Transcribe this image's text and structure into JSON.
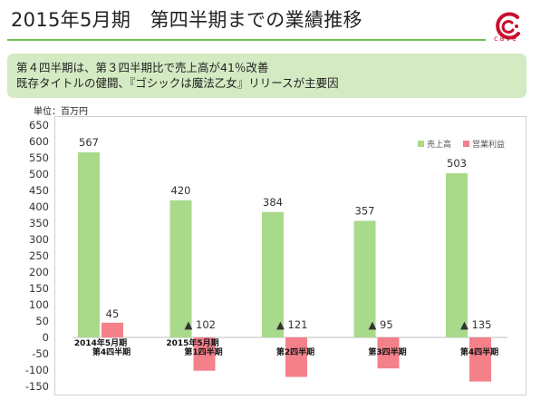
{
  "header": {
    "title": "2015年5月期　第四半期までの業績推移",
    "logo_text": "cave"
  },
  "summary": {
    "line1": "第４四半期は、第３四半期比で売上高が41％改善",
    "line2": "既存タイトルの健闘、『ゴシックは魔法乙女』リリースが主要因"
  },
  "colors": {
    "accent_green": "#6dbf4f",
    "summary_bg": "#d3eac3",
    "sales_bar": "#a9d98a",
    "profit_bar": "#f4808a",
    "logo_red": "#c8102e"
  },
  "chart_data": {
    "type": "bar",
    "unit_label": "単位：百万円",
    "categories": [
      [
        "2014年5月期",
        "第4四半期"
      ],
      [
        "2015年5月期",
        "第1四半期"
      ],
      [
        "",
        "第2四半期"
      ],
      [
        "",
        "第3四半期"
      ],
      [
        "",
        "第4四半期"
      ]
    ],
    "series": [
      {
        "name": "売上高",
        "color": "#a9d98a",
        "values": [
          567,
          420,
          384,
          357,
          503
        ]
      },
      {
        "name": "営業利益",
        "color": "#f4808a",
        "values": [
          45,
          -102,
          -121,
          -95,
          -135
        ]
      }
    ],
    "data_labels": {
      "売上高": [
        "567",
        "420",
        "384",
        "357",
        "503"
      ],
      "営業利益": [
        "45",
        "▲ 102",
        "▲ 121",
        "▲ 95",
        "▲ 135"
      ]
    },
    "ylim": [
      -150,
      650
    ],
    "yticks": [
      650,
      600,
      550,
      500,
      450,
      400,
      350,
      300,
      250,
      200,
      150,
      100,
      50,
      0,
      -50,
      -100,
      -150
    ],
    "ytick_labels": [
      "650",
      "600",
      "550",
      "500",
      "450",
      "400",
      "350",
      "300",
      "250",
      "200",
      "150",
      "100",
      "50",
      "0",
      "-50",
      "-100",
      "-150"
    ],
    "xlabel": "",
    "ylabel": "",
    "grid": false,
    "legend_position": "top-right"
  }
}
